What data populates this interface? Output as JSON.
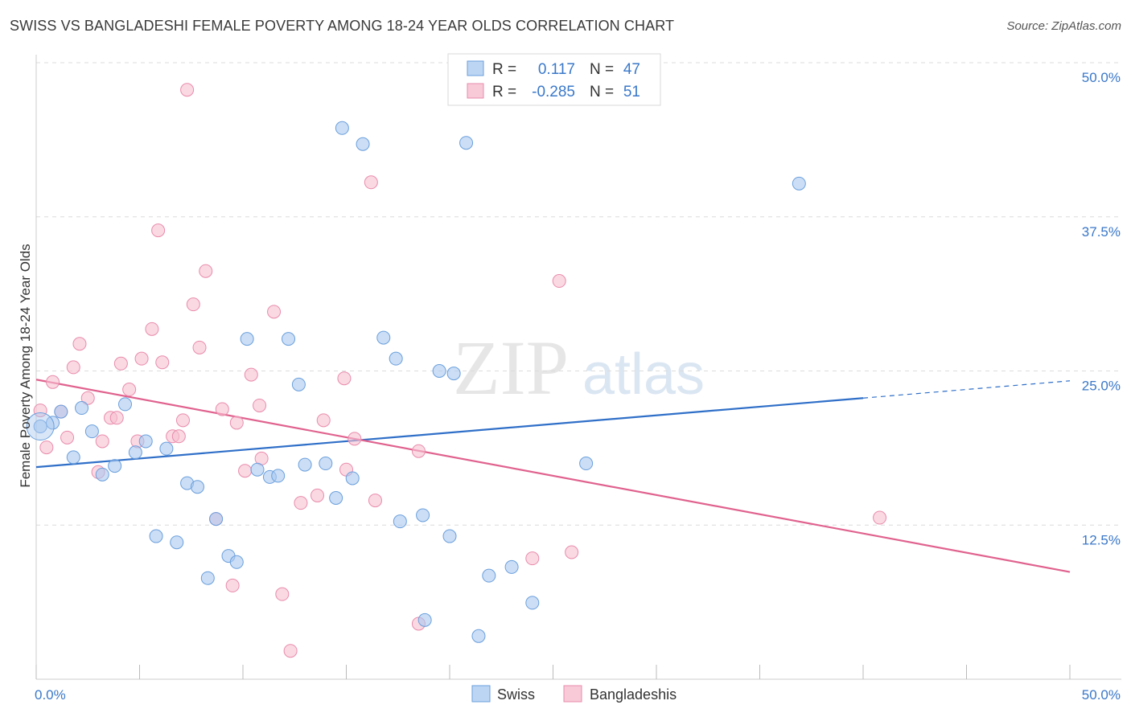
{
  "title": "SWISS VS BANGLADESHI FEMALE POVERTY AMONG 18-24 YEAR OLDS CORRELATION CHART",
  "source": "Source: ZipAtlas.com",
  "watermark": {
    "zip": "ZIP",
    "atlas": "atlas"
  },
  "chart_data": {
    "type": "scatter",
    "title": "SWISS VS BANGLADESHI FEMALE POVERTY AMONG 18-24 YEAR OLDS CORRELATION CHART",
    "xlabel": "",
    "ylabel": "Female Poverty Among 18-24 Year Olds",
    "xlim": [
      0,
      50
    ],
    "ylim": [
      0,
      50
    ],
    "x_tick_labels": [
      "0.0%",
      "50.0%"
    ],
    "y_ticks": [
      12.5,
      25.0,
      37.5,
      50.0
    ],
    "y_tick_labels": [
      "12.5%",
      "25.0%",
      "37.5%",
      "50.0%"
    ],
    "grid": true,
    "legend_position": "top-center",
    "stats": [
      {
        "series": "Swiss",
        "r_label": "R =",
        "r": "0.117",
        "n_label": "N =",
        "n": "47"
      },
      {
        "series": "Bangladeshis",
        "r_label": "R =",
        "r": "-0.285",
        "n_label": "N =",
        "n": "51"
      }
    ],
    "series": [
      {
        "name": "Swiss",
        "color": "#a9c8f0",
        "stroke": "#6a9fdc",
        "line_color": "#2f6fc8",
        "trend": {
          "x0": 0,
          "y0": 17.2,
          "x1": 40,
          "y1": 22.8,
          "x_dash_end": 50,
          "y_dash_end": 24.2
        },
        "points": [
          [
            0.2,
            20.5
          ],
          [
            0.8,
            20.8
          ],
          [
            1.2,
            21.7
          ],
          [
            1.8,
            18.0
          ],
          [
            2.2,
            22.0
          ],
          [
            2.7,
            20.1
          ],
          [
            3.2,
            16.6
          ],
          [
            3.8,
            17.3
          ],
          [
            4.3,
            22.3
          ],
          [
            4.8,
            18.4
          ],
          [
            5.3,
            19.3
          ],
          [
            5.8,
            11.6
          ],
          [
            6.3,
            18.7
          ],
          [
            6.8,
            11.1
          ],
          [
            7.3,
            15.9
          ],
          [
            7.8,
            15.6
          ],
          [
            8.3,
            8.2
          ],
          [
            8.7,
            13.0
          ],
          [
            9.3,
            10.0
          ],
          [
            9.7,
            9.5
          ],
          [
            10.2,
            27.6
          ],
          [
            10.7,
            17.0
          ],
          [
            11.3,
            16.4
          ],
          [
            11.7,
            16.5
          ],
          [
            12.2,
            27.6
          ],
          [
            12.7,
            23.9
          ],
          [
            13.0,
            17.4
          ],
          [
            14.0,
            17.5
          ],
          [
            14.5,
            14.7
          ],
          [
            14.8,
            44.7
          ],
          [
            15.3,
            16.3
          ],
          [
            15.8,
            43.4
          ],
          [
            16.8,
            27.7
          ],
          [
            17.4,
            26.0
          ],
          [
            17.6,
            12.8
          ],
          [
            18.7,
            13.3
          ],
          [
            18.8,
            4.8
          ],
          [
            19.5,
            25.0
          ],
          [
            20.0,
            11.6
          ],
          [
            20.2,
            24.8
          ],
          [
            20.8,
            43.5
          ],
          [
            21.4,
            3.5
          ],
          [
            21.9,
            8.4
          ],
          [
            23.0,
            9.1
          ],
          [
            24.0,
            6.2
          ],
          [
            26.6,
            17.5
          ],
          [
            36.9,
            40.2
          ]
        ]
      },
      {
        "name": "Bangladeshis",
        "color": "#f6bfd0",
        "stroke": "#e98bab",
        "line_color": "#e0628e",
        "trend": {
          "x0": 0,
          "y0": 24.3,
          "x1": 50,
          "y1": 8.7
        },
        "points": [
          [
            0.2,
            21.8
          ],
          [
            0.5,
            18.8
          ],
          [
            0.8,
            24.1
          ],
          [
            1.2,
            21.7
          ],
          [
            1.5,
            19.6
          ],
          [
            1.8,
            25.3
          ],
          [
            2.1,
            27.2
          ],
          [
            2.5,
            22.8
          ],
          [
            3.0,
            16.8
          ],
          [
            3.2,
            19.3
          ],
          [
            3.6,
            21.2
          ],
          [
            3.9,
            21.2
          ],
          [
            4.1,
            25.6
          ],
          [
            4.5,
            23.5
          ],
          [
            4.9,
            19.3
          ],
          [
            5.1,
            26.0
          ],
          [
            5.6,
            28.4
          ],
          [
            5.9,
            36.4
          ],
          [
            6.1,
            25.7
          ],
          [
            6.6,
            19.7
          ],
          [
            6.9,
            19.7
          ],
          [
            7.1,
            21.0
          ],
          [
            7.3,
            47.8
          ],
          [
            7.6,
            30.4
          ],
          [
            7.9,
            26.9
          ],
          [
            8.2,
            33.1
          ],
          [
            8.7,
            13.0
          ],
          [
            9.0,
            21.9
          ],
          [
            9.5,
            7.6
          ],
          [
            9.7,
            20.8
          ],
          [
            10.1,
            16.9
          ],
          [
            10.4,
            24.7
          ],
          [
            10.8,
            22.2
          ],
          [
            10.9,
            17.9
          ],
          [
            11.5,
            29.8
          ],
          [
            11.9,
            6.9
          ],
          [
            12.3,
            2.3
          ],
          [
            12.8,
            14.3
          ],
          [
            13.6,
            14.9
          ],
          [
            13.9,
            21.0
          ],
          [
            14.9,
            24.4
          ],
          [
            15.0,
            17.0
          ],
          [
            15.4,
            19.5
          ],
          [
            16.2,
            40.3
          ],
          [
            16.4,
            14.5
          ],
          [
            18.5,
            4.5
          ],
          [
            18.5,
            18.5
          ],
          [
            24.0,
            9.8
          ],
          [
            25.3,
            32.3
          ],
          [
            25.9,
            10.3
          ],
          [
            40.8,
            13.1
          ]
        ]
      }
    ]
  }
}
